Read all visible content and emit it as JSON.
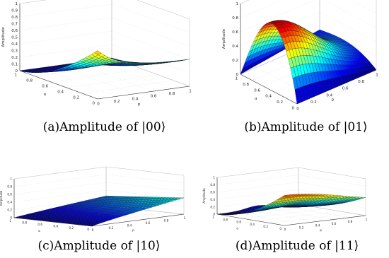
{
  "chart_data": [
    {
      "type": "surface",
      "caption": "(a)Amplitude of |00⟩",
      "zlabel": "Amplitude",
      "xlabel": "p",
      "ylabel": "α",
      "xlim": [
        0,
        1
      ],
      "ylim": [
        0,
        1
      ],
      "zlim": [
        0,
        1
      ],
      "x_ticks": [
        "0",
        "0.2",
        "0.4",
        "0.6",
        "0.8",
        "1"
      ],
      "y_ticks": [
        "0",
        "0.2",
        "0.4",
        "0.6",
        "0.8",
        "1"
      ],
      "z_ticks": [
        "0",
        "0.1",
        "0.2",
        "0.3",
        "0.4",
        "0.5",
        "0.6",
        "0.7",
        "0.8",
        "0.9",
        "1"
      ],
      "surface": "0.7*(1-alpha)^2 at p=0 decaying with p; ridge along alpha, small hump mid p"
    },
    {
      "type": "surface",
      "caption": "(b)Amplitude of |01⟩",
      "zlabel": "Amplitude",
      "xlabel": "p",
      "ylabel": "α",
      "xlim": [
        0,
        1
      ],
      "ylim": [
        0,
        1
      ],
      "zlim": [
        0,
        1
      ],
      "x_ticks": [
        "0",
        "0.2",
        "0.4",
        "0.6",
        "0.8",
        "1"
      ],
      "y_ticks": [
        "0",
        "0.2",
        "0.4",
        "0.6",
        "0.8",
        "1"
      ],
      "z_ticks": [
        "0",
        "0.2",
        "0.4",
        "0.6",
        "0.8",
        "1"
      ],
      "surface": "peak ~0.9 near p=0, alpha=0.5; falls off with p"
    },
    {
      "type": "surface",
      "caption": "(c)Amplitude of |10⟩",
      "zlabel": "Amplitude",
      "xlabel": "p",
      "ylabel": "α",
      "xlim": [
        0,
        1
      ],
      "ylim": [
        0,
        1
      ],
      "zlim": [
        0,
        1
      ],
      "x_ticks": [
        "0",
        "0.2",
        "0.4",
        "0.6",
        "0.8",
        "1"
      ],
      "y_ticks": [
        "0",
        "0.2",
        "0.4",
        "0.6",
        "0.8",
        "1"
      ],
      "z_ticks": [
        "0",
        "0.2",
        "0.4",
        "0.6",
        "0.8",
        "1"
      ],
      "surface": "rises with p up to ~0.4"
    },
    {
      "type": "surface",
      "caption": "(d)Amplitude of |11⟩",
      "zlabel": "Amplitude",
      "xlabel": "p",
      "ylabel": "α",
      "xlim": [
        0,
        1
      ],
      "ylim": [
        0,
        1
      ],
      "zlim": [
        0,
        1
      ],
      "x_ticks": [
        "0",
        "0.2",
        "0.4",
        "0.6",
        "0.8",
        "1"
      ],
      "y_ticks": [
        "0",
        "0.2",
        "0.4",
        "0.6",
        "0.8",
        "1"
      ],
      "z_ticks": [
        "0",
        "0.2",
        "0.4",
        "0.6",
        "0.8",
        "1"
      ],
      "surface": "high ~0.8 along far alpha edge, falls to ~0 near alpha=0"
    }
  ]
}
